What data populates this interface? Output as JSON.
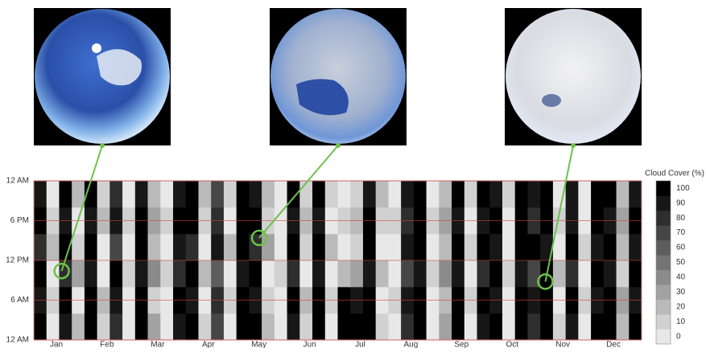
{
  "chart_data": {
    "type": "heatmap",
    "categories": [
      "Jan",
      "Feb",
      "Mar",
      "Apr",
      "May",
      "Jun",
      "Jul",
      "Aug",
      "Sep",
      "Oct",
      "Nov",
      "Dec"
    ],
    "ylim": [
      0,
      24
    ],
    "yticks": [
      {
        "value": 0,
        "label": "12 AM"
      },
      {
        "value": 6,
        "label": "6 AM"
      },
      {
        "value": 12,
        "label": "12 PM"
      },
      {
        "value": 18,
        "label": "6 PM"
      },
      {
        "value": 24,
        "label": "12 AM"
      }
    ],
    "grid": true,
    "z": [
      [
        100,
        0,
        90,
        20,
        100,
        10,
        80,
        0,
        100,
        30,
        0,
        90,
        100,
        10,
        70,
        0,
        100,
        100,
        20,
        0,
        90,
        10,
        100,
        0,
        100,
        100,
        100,
        10,
        0,
        80,
        100,
        0,
        30,
        100,
        0,
        90,
        100,
        0,
        100,
        80,
        100,
        10,
        90,
        0,
        100,
        100,
        20,
        100
      ],
      [
        90,
        10,
        100,
        0,
        100,
        20,
        90,
        0,
        100,
        10,
        0,
        100,
        90,
        0,
        80,
        10,
        100,
        90,
        10,
        0,
        100,
        20,
        100,
        10,
        100,
        90,
        100,
        0,
        10,
        90,
        100,
        0,
        20,
        100,
        10,
        100,
        90,
        0,
        100,
        90,
        100,
        0,
        100,
        10,
        90,
        100,
        30,
        90
      ],
      [
        100,
        0,
        80,
        30,
        90,
        0,
        100,
        10,
        90,
        40,
        10,
        80,
        100,
        20,
        60,
        0,
        90,
        100,
        0,
        10,
        80,
        0,
        90,
        0,
        20,
        30,
        90,
        20,
        0,
        70,
        90,
        10,
        40,
        90,
        0,
        80,
        100,
        10,
        90,
        70,
        100,
        20,
        80,
        0,
        100,
        90,
        10,
        100
      ],
      [
        80,
        20,
        100,
        10,
        100,
        0,
        70,
        0,
        100,
        20,
        0,
        90,
        80,
        0,
        90,
        20,
        100,
        80,
        30,
        0,
        100,
        10,
        100,
        20,
        0,
        10,
        100,
        0,
        0,
        90,
        100,
        0,
        20,
        100,
        10,
        100,
        90,
        0,
        100,
        100,
        90,
        0,
        100,
        10,
        90,
        100,
        20,
        90
      ],
      [
        100,
        10,
        90,
        0,
        90,
        20,
        90,
        10,
        100,
        30,
        10,
        100,
        100,
        10,
        80,
        0,
        100,
        100,
        10,
        0,
        90,
        20,
        90,
        0,
        10,
        20,
        100,
        10,
        10,
        80,
        100,
        10,
        30,
        90,
        0,
        90,
        100,
        0,
        100,
        80,
        100,
        10,
        90,
        0,
        100,
        90,
        30,
        100
      ],
      [
        90,
        0,
        100,
        20,
        100,
        10,
        80,
        0,
        90,
        20,
        0,
        90,
        100,
        20,
        70,
        10,
        100,
        90,
        20,
        0,
        100,
        10,
        100,
        10,
        0,
        10,
        90,
        20,
        0,
        90,
        100,
        0,
        20,
        100,
        10,
        100,
        90,
        10,
        100,
        90,
        100,
        0,
        90,
        0,
        100,
        100,
        20,
        90
      ]
    ],
    "highlights": [
      {
        "column": 2.2,
        "hour": 10.4
      },
      {
        "column": 17.8,
        "hour": 15.4
      },
      {
        "column": 40.4,
        "hour": 8.8
      }
    ],
    "highlight_color": "#6cc24a",
    "colorbar": {
      "label": "Cloud Cover (%)",
      "ticks": [
        0,
        10,
        20,
        30,
        40,
        50,
        60,
        70,
        80,
        90,
        100
      ]
    }
  }
}
